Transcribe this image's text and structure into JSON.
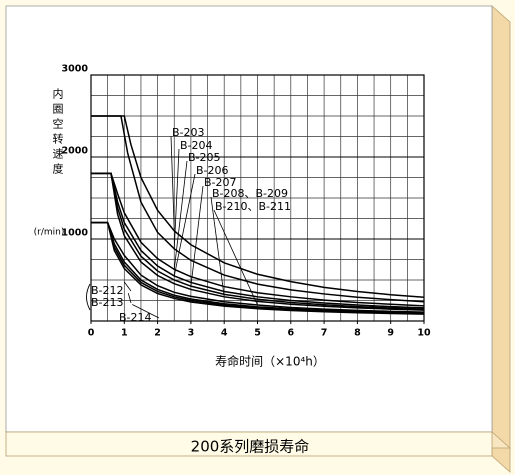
{
  "chart_data": {
    "type": "line",
    "title": "200系列磨损寿命",
    "x_label": "寿命时间（×10⁴h）",
    "y_label": "内圈空转速度",
    "y_unit": "(r/min)",
    "xlim": [
      0,
      10
    ],
    "xticks": [
      0,
      1,
      2,
      3,
      4,
      5,
      6,
      7,
      8,
      9,
      10
    ],
    "ylim": [
      0,
      3000
    ],
    "yticks": [
      1000,
      2000,
      3000
    ],
    "grid": true,
    "color": "#000000",
    "series": [
      {
        "name": "B-203",
        "x": [
          0,
          1.0,
          1.2,
          1.5,
          2,
          2.5,
          3,
          4,
          5,
          6,
          7,
          8,
          9,
          10
        ],
        "values": [
          2500,
          2500,
          2150,
          1750,
          1350,
          1100,
          930,
          710,
          570,
          480,
          410,
          360,
          320,
          290
        ]
      },
      {
        "name": "B-204",
        "x": [
          0,
          0.9,
          1.1,
          1.5,
          2,
          2.5,
          3,
          4,
          5,
          6,
          7,
          8,
          9,
          10
        ],
        "values": [
          2500,
          2500,
          2050,
          1450,
          1080,
          880,
          740,
          560,
          450,
          380,
          330,
          290,
          260,
          235
        ]
      },
      {
        "name": "B-205",
        "x": [
          0,
          0.6,
          0.8,
          1,
          1.5,
          2,
          2.5,
          3,
          4,
          5,
          6,
          7,
          8,
          9,
          10
        ],
        "values": [
          1800,
          1800,
          1550,
          1320,
          960,
          760,
          630,
          540,
          420,
          345,
          295,
          255,
          225,
          205,
          185
        ]
      },
      {
        "name": "B-206",
        "x": [
          0,
          0.6,
          0.8,
          1,
          1.5,
          2,
          2.5,
          3,
          4,
          5,
          6,
          7,
          8,
          9,
          10
        ],
        "values": [
          1800,
          1800,
          1450,
          1200,
          860,
          670,
          550,
          470,
          360,
          295,
          250,
          220,
          195,
          175,
          160
        ]
      },
      {
        "name": "B-207",
        "x": [
          0,
          0.6,
          0.8,
          1,
          1.5,
          2,
          2.5,
          3,
          4,
          5,
          6,
          7,
          8,
          9,
          10
        ],
        "values": [
          1800,
          1800,
          1380,
          1120,
          790,
          610,
          500,
          425,
          325,
          265,
          225,
          198,
          175,
          158,
          145
        ]
      },
      {
        "name": "B-208、B-209",
        "x": [
          0,
          0.6,
          0.8,
          1,
          1.5,
          2,
          2.5,
          3,
          4,
          5,
          6,
          7,
          8,
          9,
          10
        ],
        "values": [
          1800,
          1800,
          1300,
          1040,
          720,
          555,
          455,
          385,
          295,
          240,
          205,
          180,
          160,
          145,
          132
        ]
      },
      {
        "name": "B-210、B-211",
        "x": [
          0,
          0.5,
          0.7,
          1,
          1.5,
          2,
          2.5,
          3,
          4,
          5,
          6,
          7,
          8,
          9,
          10
        ],
        "values": [
          1200,
          1200,
          1000,
          800,
          560,
          430,
          350,
          300,
          235,
          195,
          165,
          145,
          130,
          118,
          108
        ]
      },
      {
        "name": "B-212",
        "x": [
          0,
          0.5,
          0.7,
          1,
          1.5,
          2,
          2.5,
          3,
          4,
          5,
          6,
          7,
          8,
          9,
          10
        ],
        "values": [
          1200,
          1200,
          940,
          720,
          500,
          385,
          315,
          268,
          210,
          172,
          148,
          130,
          116,
          105,
          96
        ]
      },
      {
        "name": "B-213",
        "x": [
          0,
          0.5,
          0.7,
          1,
          1.5,
          2,
          2.5,
          3,
          4,
          5,
          6,
          7,
          8,
          9,
          10
        ],
        "values": [
          1200,
          1200,
          900,
          680,
          470,
          360,
          295,
          250,
          195,
          160,
          138,
          121,
          108,
          98,
          90
        ]
      },
      {
        "name": "B-214",
        "x": [
          0,
          0.5,
          0.7,
          1,
          1.5,
          2,
          2.5,
          3,
          4,
          5,
          6,
          7,
          8,
          9,
          10
        ],
        "values": [
          1200,
          1200,
          860,
          640,
          440,
          335,
          275,
          232,
          182,
          150,
          128,
          113,
          101,
          92,
          84
        ]
      }
    ]
  }
}
